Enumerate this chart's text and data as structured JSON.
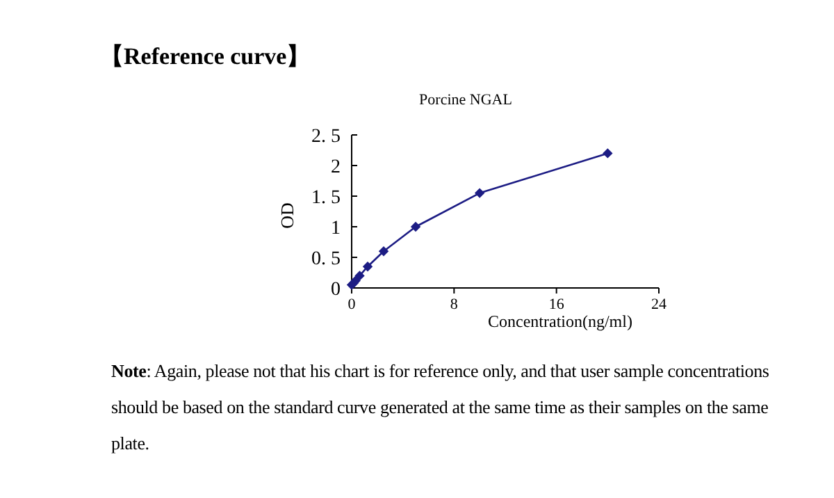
{
  "chart_data": {
    "type": "line",
    "title": "【Reference curve】",
    "subtitle": "Porcine NGAL",
    "xlabel": "Concentration(ng/ml)",
    "ylabel": "OD",
    "x": [
      0,
      0.156,
      0.3125,
      0.625,
      1.25,
      2.5,
      5,
      10,
      20
    ],
    "series": [
      {
        "color": "#1c1c84",
        "values": [
          0.05,
          0.08,
          0.12,
          0.2,
          0.35,
          0.6,
          1.0,
          1.55,
          2.2
        ]
      }
    ],
    "xlim": [
      0,
      24
    ],
    "xticks": [
      0,
      8,
      16,
      24
    ],
    "ylim": [
      0,
      2.5
    ],
    "yticks": [
      {
        "value": 0,
        "label": "0"
      },
      {
        "value": 0.5,
        "label": "0. 5"
      },
      {
        "value": 1,
        "label": "1"
      },
      {
        "value": 1.5,
        "label": "1. 5"
      },
      {
        "value": 2,
        "label": "2"
      },
      {
        "value": 2.5,
        "label": "2. 5"
      }
    ],
    "marker": "diamond",
    "line_style": "solid",
    "grid": false,
    "annotations": [
      "**Note**: Again, please not that his chart is for reference only, and that user sample concentrations should be based on the standard curve generated at the same time as their samples on the same plate."
    ]
  }
}
